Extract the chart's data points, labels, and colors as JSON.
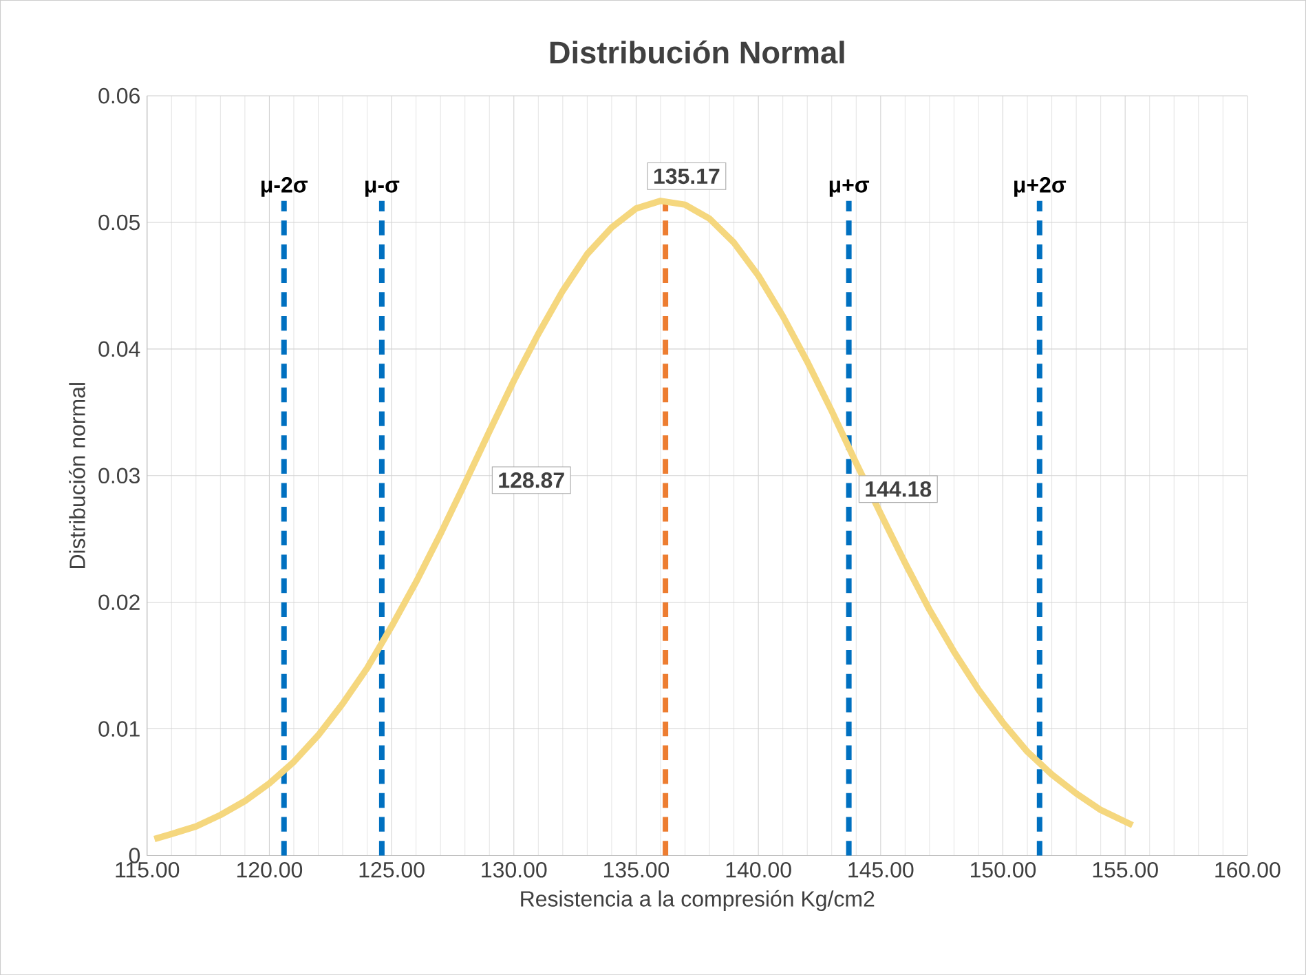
{
  "chart_data": {
    "type": "line",
    "title": "Distribución Normal",
    "xlabel": "Resistencia a la compresión Kg/cm2",
    "ylabel": "Distribución normal",
    "x": [
      115.3,
      116,
      117,
      118,
      119,
      120,
      121,
      122,
      123,
      124,
      125,
      126,
      127,
      128,
      129,
      130,
      131,
      132,
      133,
      134,
      135,
      136,
      137,
      138,
      139,
      140,
      141,
      142,
      143,
      144,
      145,
      146,
      147,
      148,
      149,
      150,
      151,
      152,
      153,
      154,
      155.3
    ],
    "series": [
      {
        "color": "#f5d77e",
        "values": [
          0.0013,
          0.0017,
          0.0023,
          0.0032,
          0.0043,
          0.0057,
          0.0074,
          0.0095,
          0.012,
          0.0148,
          0.0181,
          0.0216,
          0.0254,
          0.0294,
          0.0335,
          0.0375,
          0.0412,
          0.0446,
          0.0475,
          0.0496,
          0.0511,
          0.0517,
          0.0514,
          0.0503,
          0.0484,
          0.0458,
          0.0426,
          0.039,
          0.0351,
          0.031,
          0.027,
          0.0231,
          0.0194,
          0.0161,
          0.0131,
          0.0105,
          0.0082,
          0.0064,
          0.0049,
          0.0036,
          0.0024
        ]
      }
    ],
    "xlim": [
      115,
      160
    ],
    "ylim": [
      0,
      0.06
    ],
    "xticks": [
      {
        "value": 115,
        "label": "115.00"
      },
      {
        "value": 120,
        "label": "120.00"
      },
      {
        "value": 125,
        "label": "125.00"
      },
      {
        "value": 130,
        "label": "130.00"
      },
      {
        "value": 135,
        "label": "135.00"
      },
      {
        "value": 140,
        "label": "140.00"
      },
      {
        "value": 145,
        "label": "145.00"
      },
      {
        "value": 150,
        "label": "150.00"
      },
      {
        "value": 155,
        "label": "155.00"
      },
      {
        "value": 160,
        "label": "160.00"
      }
    ],
    "yticks": [
      0,
      0.01,
      0.02,
      0.03,
      0.04,
      0.05,
      0.06
    ],
    "grid": true,
    "marker": "none",
    "line_style": "solid",
    "ref_lines": [
      {
        "axis": "x",
        "value": 120.6,
        "label": "μ-2σ",
        "color": "#0070c0",
        "line_style": "dashed"
      },
      {
        "axis": "x",
        "value": 124.6,
        "label": "μ-σ",
        "color": "#0070c0",
        "line_style": "dashed"
      },
      {
        "axis": "x",
        "value": 136.2,
        "color": "#ed7d31",
        "line_style": "dashed"
      },
      {
        "axis": "x",
        "value": 143.7,
        "label": "μ+σ",
        "color": "#0070c0",
        "line_style": "dashed"
      },
      {
        "axis": "x",
        "value": 151.5,
        "label": "μ+2σ",
        "color": "#0070c0",
        "line_style": "dashed"
      }
    ],
    "annotations": [
      {
        "text": "135.17",
        "x": 136.2,
        "y": 0.0517
      },
      {
        "text": "128.87",
        "x": 128.8,
        "y": 0.0313
      },
      {
        "text": "144.18",
        "x": 143.8,
        "y": 0.0306
      }
    ]
  }
}
